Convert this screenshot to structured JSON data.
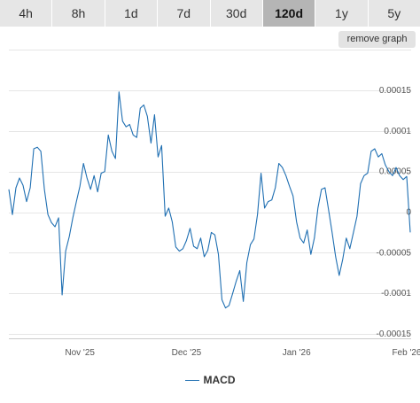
{
  "range_tabs": [
    {
      "label": "4h",
      "active": false
    },
    {
      "label": "8h",
      "active": false
    },
    {
      "label": "1d",
      "active": false
    },
    {
      "label": "7d",
      "active": false
    },
    {
      "label": "30d",
      "active": false
    },
    {
      "label": "120d",
      "active": true
    },
    {
      "label": "1y",
      "active": false
    },
    {
      "label": "5y",
      "active": false
    }
  ],
  "remove_button": "remove graph",
  "colors": {
    "line": "#1f6fb2",
    "grid": "#e6e6e6",
    "active_tab": "#b5b5b5",
    "tab": "#e6e6e6"
  },
  "chart_data": {
    "type": "line",
    "series": [
      {
        "name": "MACD",
        "start": "2025-10-12",
        "x_step_days": 1,
        "values": [
          2.8e-05,
          -3e-06,
          3e-05,
          4.2e-05,
          3.3e-05,
          1.3e-05,
          3e-05,
          7.8e-05,
          8e-05,
          7.5e-05,
          2.8e-05,
          -3e-06,
          -1.3e-05,
          -1.8e-05,
          -7e-06,
          -0.000102,
          -4.8e-05,
          -3e-05,
          -7e-06,
          1.3e-05,
          3.2e-05,
          6e-05,
          4.2e-05,
          2.8e-05,
          4.5e-05,
          2.5e-05,
          4.8e-05,
          5e-05,
          9.5e-05,
          7.5e-05,
          6.6e-05,
          0.000148,
          0.000112,
          0.000105,
          0.000108,
          9.5e-05,
          9.2e-05,
          0.000128,
          0.000132,
          0.000118,
          8.5e-05,
          0.00012,
          6.8e-05,
          8.2e-05,
          -5e-06,
          5e-06,
          -1.2e-05,
          -4.3e-05,
          -4.8e-05,
          -4.5e-05,
          -3.5e-05,
          -2e-05,
          -4.2e-05,
          -4.5e-05,
          -3.2e-05,
          -5.5e-05,
          -4.7e-05,
          -2.5e-05,
          -2.8e-05,
          -5.2e-05,
          -0.000108,
          -0.000118,
          -0.000115,
          -0.0001,
          -8.5e-05,
          -7.2e-05,
          -0.00011,
          -6.2e-05,
          -4e-05,
          -3.3e-05,
          -3e-06,
          4.8e-05,
          5e-06,
          1.3e-05,
          1.5e-05,
          3e-05,
          6e-05,
          5.5e-05,
          4.5e-05,
          3.2e-05,
          2e-05,
          -1.2e-05,
          -3.2e-05,
          -3.8e-05,
          -2.2e-05,
          -5.2e-05,
          -3.2e-05,
          5e-06,
          2.8e-05,
          3e-05,
          3e-06,
          -2.5e-05,
          -5.5e-05,
          -7.8e-05,
          -5.8e-05,
          -3.2e-05,
          -4.5e-05,
          -2.5e-05,
          -5e-06,
          3.5e-05,
          4.5e-05,
          4.8e-05,
          7.5e-05,
          7.8e-05,
          6.8e-05,
          7.2e-05,
          5.8e-05,
          5e-05,
          4.5e-05,
          5.5e-05,
          4.5e-05,
          4e-05,
          4.4e-05,
          -2.5e-05
        ]
      }
    ],
    "x_ticks": [
      "Nov '25",
      "Dec '25",
      "Jan '26",
      "Feb '26"
    ],
    "y_ticks": [
      "0.00015",
      "0.0001",
      "0.00005",
      "0",
      "-0.00005",
      "-0.0001",
      "-0.00015"
    ],
    "ylim": [
      -0.00015,
      0.00015
    ],
    "legend": "MACD",
    "legend_position": "bottom-center",
    "grid": true
  }
}
